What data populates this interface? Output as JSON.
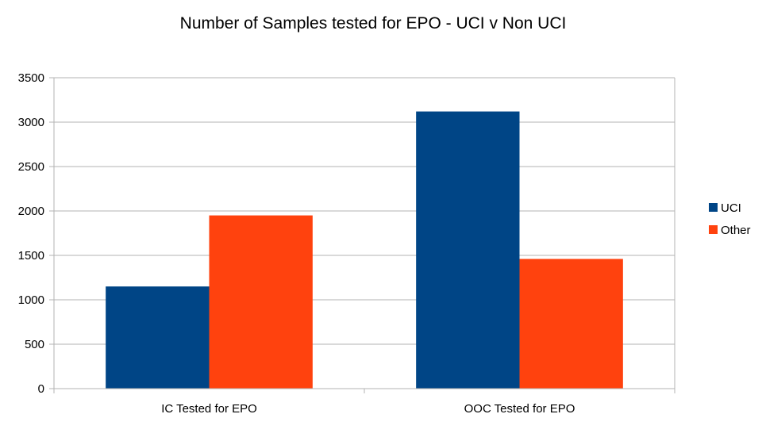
{
  "chart_data": {
    "type": "bar",
    "title": "Number of Samples tested for EPO - UCI v Non UCI",
    "xlabel": "",
    "ylabel": "",
    "categories": [
      "IC Tested for EPO",
      "OOC Tested for EPO"
    ],
    "series": [
      {
        "name": "UCI",
        "color": "#004586",
        "values": [
          1150,
          3120
        ]
      },
      {
        "name": "Other",
        "color": "#ff420e",
        "values": [
          1950,
          1460
        ]
      }
    ],
    "ylim": [
      0,
      3500
    ],
    "yticks": [
      "0",
      "500",
      "1000",
      "1500",
      "2000",
      "2500",
      "3000",
      "3500"
    ],
    "grid": true,
    "legend_position": "right"
  }
}
